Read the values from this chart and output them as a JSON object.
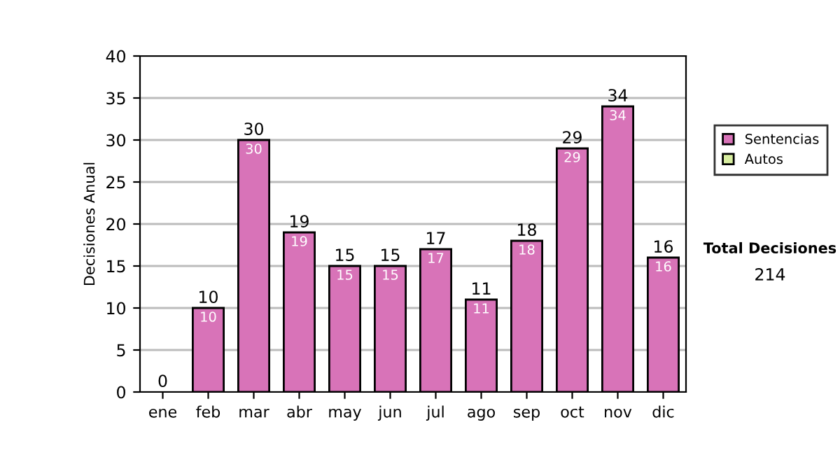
{
  "chart_data": {
    "type": "bar",
    "ylabel": "Decisiones Anual",
    "categories": [
      "ene",
      "feb",
      "mar",
      "abr",
      "may",
      "jun",
      "jul",
      "ago",
      "sep",
      "oct",
      "nov",
      "dic"
    ],
    "stacked": true,
    "series": [
      {
        "name": "Sentencias",
        "color": "#d873b8",
        "values": [
          0,
          10,
          30,
          19,
          15,
          15,
          17,
          11,
          18,
          29,
          34,
          16
        ],
        "value_labels": [
          null,
          "10",
          "30",
          "19",
          "15",
          "15",
          "17",
          "11",
          "18",
          "29",
          "34",
          "16"
        ]
      },
      {
        "name": "Autos",
        "color": "#d8eea0",
        "values": [
          0,
          0,
          0,
          0,
          0,
          0,
          0,
          0,
          0,
          0,
          0,
          0
        ]
      }
    ],
    "totals": [
      "0",
      "10",
      "30",
      "19",
      "15",
      "15",
      "17",
      "11",
      "18",
      "29",
      "34",
      "16"
    ],
    "ylim": [
      0,
      40
    ],
    "yticks": [
      0,
      5,
      10,
      15,
      20,
      25,
      30,
      35,
      40
    ],
    "grid": "y",
    "legend": "right",
    "annotations": [
      "Total Decisiones",
      "214"
    ]
  }
}
